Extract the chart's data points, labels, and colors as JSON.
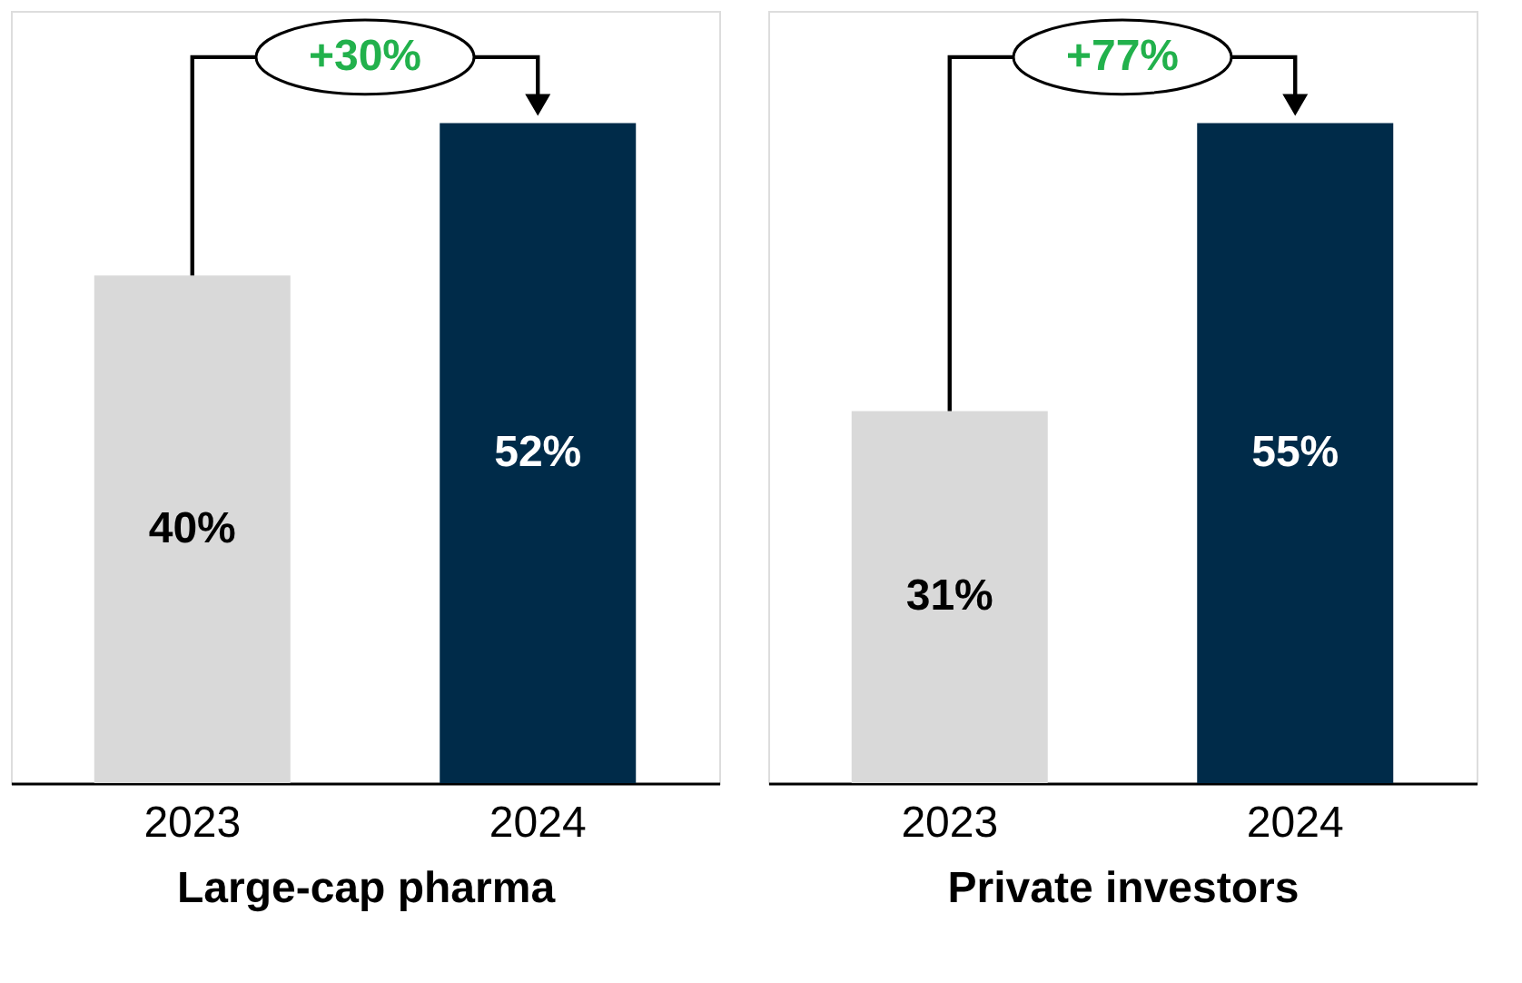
{
  "chart_data": [
    {
      "type": "bar",
      "categories": [
        "2023",
        "2024"
      ],
      "values": [
        40,
        52
      ],
      "colors": [
        "#d9d9d9",
        "#002b49"
      ],
      "value_labels": [
        "40%",
        "52%"
      ],
      "xlabel": "Large-cap pharma",
      "annotations": [
        "+30%"
      ]
    },
    {
      "type": "bar",
      "categories": [
        "2023",
        "2024"
      ],
      "values": [
        31,
        55
      ],
      "colors": [
        "#d9d9d9",
        "#002b49"
      ],
      "value_labels": [
        "31%",
        "55%"
      ],
      "xlabel": "Private investors",
      "annotations": [
        "+77%"
      ]
    }
  ]
}
